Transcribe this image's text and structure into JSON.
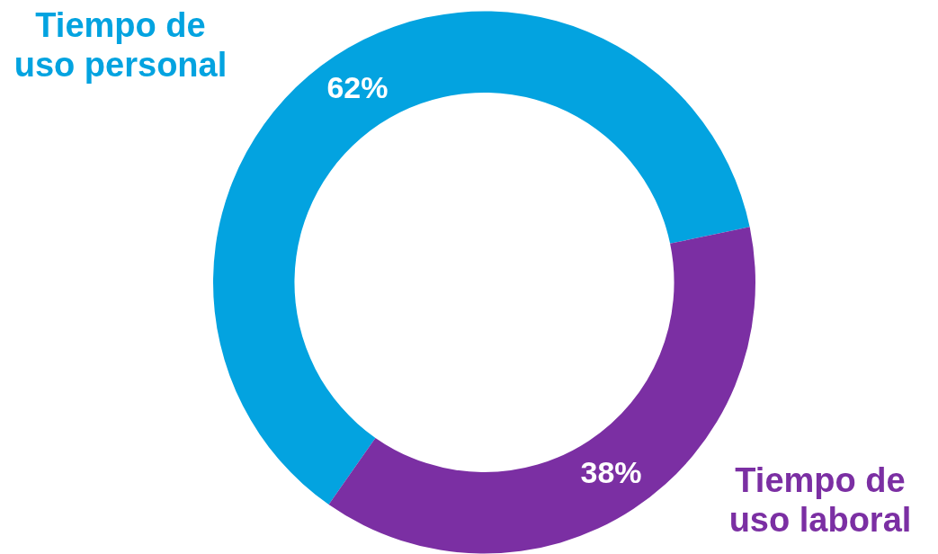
{
  "chart_data": {
    "type": "donut",
    "categories": [
      "Tiempo de uso personal",
      "Tiempo de uso laboral"
    ],
    "values": [
      62,
      38
    ],
    "colors": [
      "#03a3e0",
      "#7b2fa3"
    ],
    "value_labels": [
      "62%",
      "38%"
    ]
  }
}
